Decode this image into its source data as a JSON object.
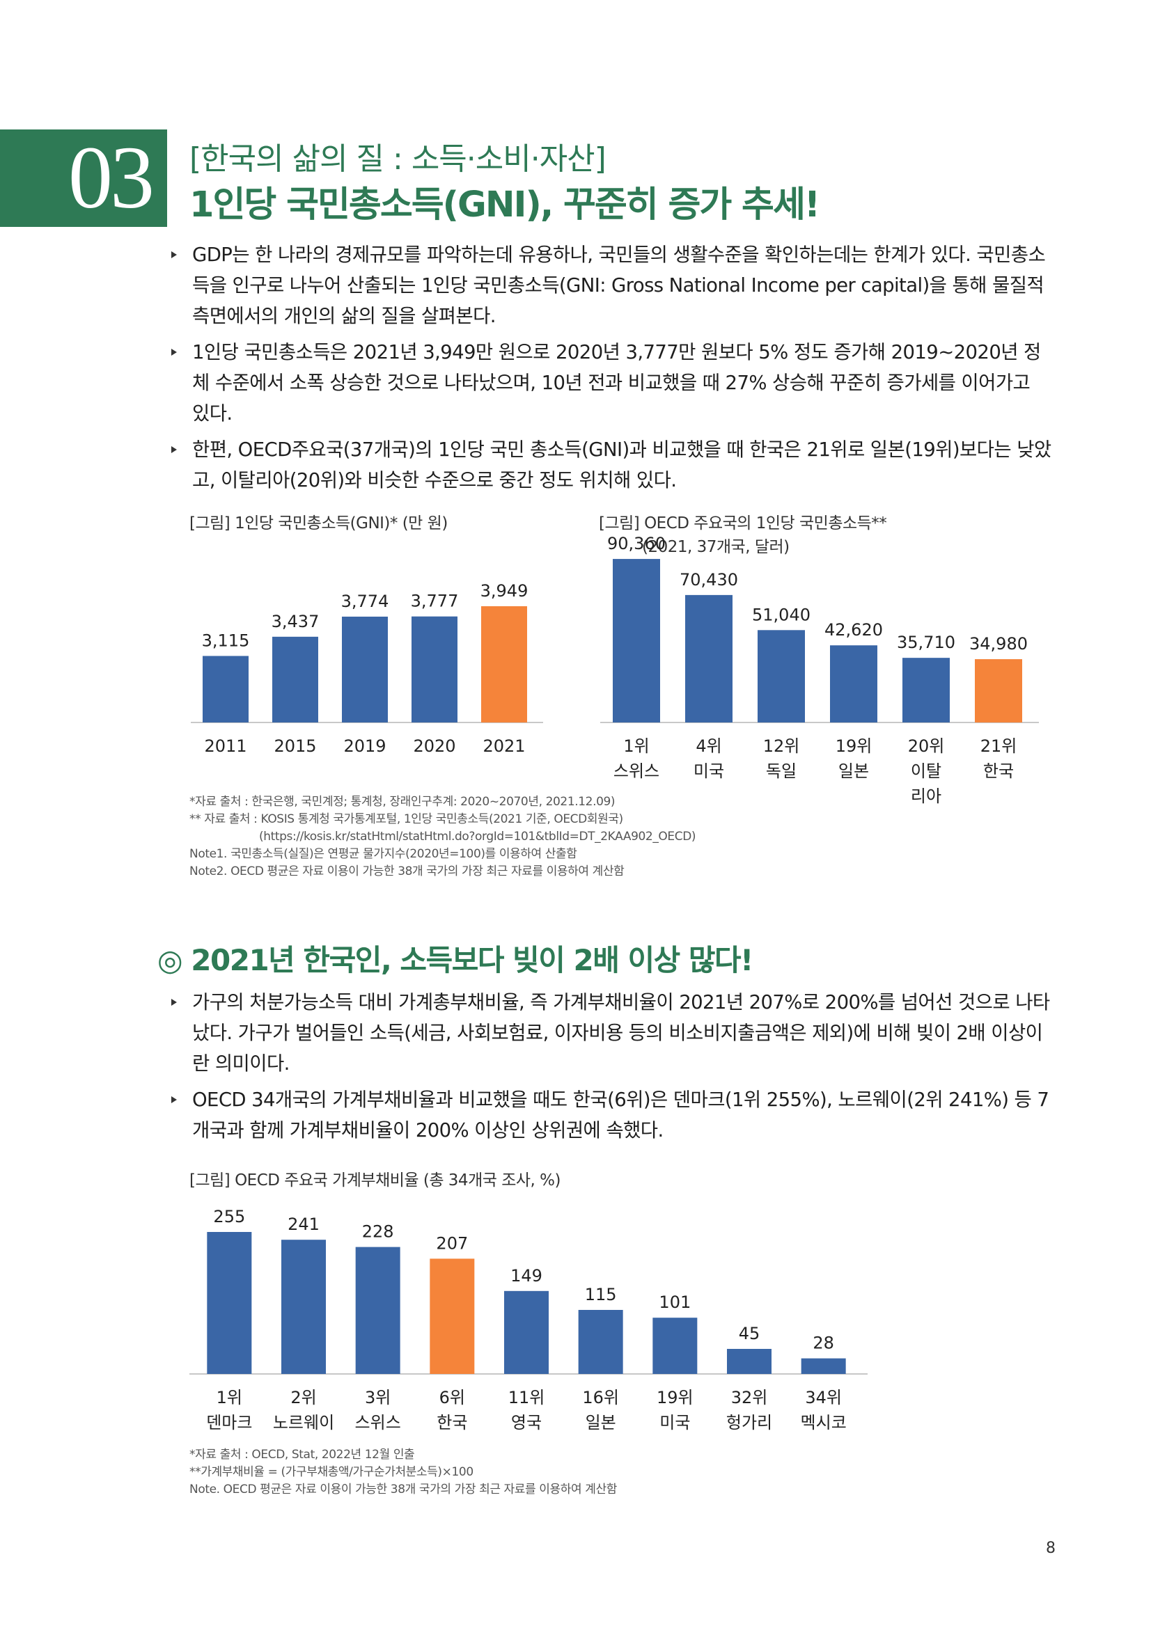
{
  "header": {
    "section_number": "03",
    "subtitle": "[한국의 삶의 질 : 소득·소비·자산]",
    "title": "1인당 국민총소득(GNI), 꾸준히 증가 추세!"
  },
  "section1": {
    "bullets": [
      "GDP는 한 나라의 경제규모를 파악하는데 유용하나, 국민들의 생활수준을 확인하는데는 한계가 있다. 국민총소득을 인구로 나누어 산출되는 1인당 국민총소득(GNI: Gross National Income per capital)을 통해 물질적 측면에서의 개인의 삶의 질을 살펴본다.",
      "1인당 국민총소득은 2021년 3,949만 원으로 2020년 3,777만 원보다 5% 정도 증가해 2019~2020년 정체 수준에서 소폭 상승한 것으로 나타났으며, 10년 전과 비교했을 때 27% 상승해 꾸준히 증가세를 이어가고 있다.",
      "한편, OECD주요국(37개국)의 1인당 국민 총소득(GNI)과 비교했을 때 한국은 21위로 일본(19위)보다는 낮았고, 이탈리아(20위)와 비슷한 수준으로 중간 정도 위치해 있다."
    ],
    "notes": [
      "*자료 출처 : 한국은행, 국민계정; 통계청, 장래인구추계: 2020~2070년, 2021.12.09)",
      "** 자료 출처 : KOSIS 통계청 국가통계포털, 1인당 국민총소득(2021 기준, OECD회원국)",
      "(https://kosis.kr/statHtml/statHtml.do?orgId=101&tblId=DT_2KAA902_OECD)",
      "Note1. 국민총소득(실질)은 연평균 물가지수(2020년=100)를 이용하여 산출함",
      "Note2. OECD 평균은 자료 이용이 가능한 38개 국가의 가장 최근 자료를 이용하여 계산함"
    ]
  },
  "section2": {
    "title": "◎ 2021년 한국인, 소득보다 빚이 2배 이상 많다!",
    "bullets": [
      "가구의 처분가능소득 대비 가계총부채비율, 즉 가계부채비율이 2021년 207%로 200%를 넘어선 것으로 나타났다. 가구가 벌어들인 소득(세금, 사회보험료, 이자비용 등의 비소비지출금액은 제외)에 비해 빚이 2배 이상이란 의미이다.",
      "OECD 34개국의 가계부채비율과 비교했을 때도 한국(6위)은 덴마크(1위 255%), 노르웨이(2위 241%) 등 7개국과 함께 가계부채비율이 200% 이상인 상위권에 속했다."
    ],
    "notes": [
      "*자료 출처 : OECD, Stat, 2022년 12월 인출",
      "**가계부채비율 = (가구부채총액/가구순가처분소득)×100",
      "Note. OECD 평균은 자료 이용이 가능한 38개 국가의 가장 최근 자료를 이용하여 계산함"
    ]
  },
  "colors": {
    "bar": "#3a66a6",
    "highlight": "#f5843a",
    "accent_green": "#2e7a55",
    "axis": "#c8c8c8"
  },
  "chart_data": [
    {
      "type": "bar",
      "title": "[그림] 1인당 국민총소득(GNI)* (만 원)",
      "categories": [
        "2011",
        "2015",
        "2019",
        "2020",
        "2021"
      ],
      "values": [
        3115,
        3437,
        3774,
        3777,
        3949
      ],
      "value_labels": [
        "3,115",
        "3,437",
        "3,774",
        "3,777",
        "3,949"
      ],
      "highlight_index": 4,
      "ylim": [
        2000,
        4100
      ]
    },
    {
      "type": "bar",
      "title": "[그림] OECD 주요국의 1인당 국민총소득**",
      "subtitle": "(2021, 37개국, 달러)",
      "categories": [
        "1위\n스위스",
        "4위\n미국",
        "12위\n독일",
        "19위\n일본",
        "20위\n이탈\n리아",
        "21위\n한국"
      ],
      "values": [
        90360,
        70430,
        51040,
        42620,
        35710,
        34980
      ],
      "value_labels": [
        "90,360",
        "70,430",
        "51,040",
        "42,620",
        "35,710",
        "34,980"
      ],
      "highlight_index": 5,
      "ylim": [
        0,
        100000
      ]
    },
    {
      "type": "bar",
      "title": "[그림] OECD 주요국 가계부채비율 (총 34개국 조사, %)",
      "categories": [
        "1위\n덴마크",
        "2위\n노르웨이",
        "3위\n스위스",
        "6위\n한국",
        "11위\n영국",
        "16위\n일본",
        "19위\n미국",
        "32위\n헝가리",
        "34위\n멕시코"
      ],
      "values": [
        255,
        241,
        228,
        207,
        149,
        115,
        101,
        45,
        28
      ],
      "value_labels": [
        "255",
        "241",
        "228",
        "207",
        "149",
        "115",
        "101",
        "45",
        "28"
      ],
      "highlight_index": 3,
      "ylim": [
        0,
        280
      ]
    }
  ],
  "page_number": "8"
}
